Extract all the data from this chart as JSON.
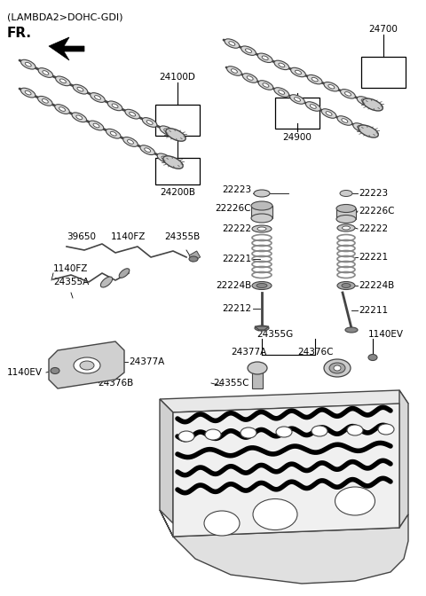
{
  "bg_color": "#ffffff",
  "fig_width": 4.8,
  "fig_height": 6.72,
  "dpi": 100,
  "header_text": "(LAMBDA2>DOHC-GDI)",
  "fr_text": "FR.",
  "camshaft_label_24100D": "24100D",
  "camshaft_label_24200B": "24200B",
  "camshaft_label_24700": "24700",
  "camshaft_label_24900": "24900",
  "valve_labels_left": [
    "22223",
    "22226C",
    "22222",
    "22221",
    "22224B",
    "22212"
  ],
  "valve_labels_right": [
    "22223",
    "22226C",
    "22222",
    "22221",
    "22224B",
    "22211"
  ],
  "injector_labels_top": [
    "39650",
    "1140FZ",
    "24355B"
  ],
  "injector_labels_mid": [
    "1140FZ",
    "24355A"
  ],
  "injector_labels_bottom_left": [
    "1140EV",
    "24377A",
    "24376B"
  ],
  "injector_labels_bottom_right": [
    "24355G",
    "1140EV",
    "24377A",
    "24376C"
  ],
  "label_24355C": "24355C"
}
